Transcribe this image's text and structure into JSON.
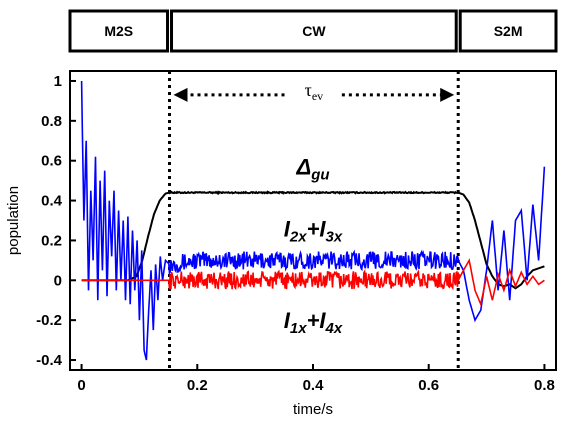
{
  "chart_data": {
    "type": "line",
    "xlabel": "time/s",
    "ylabel": "population",
    "xlim": [
      -0.02,
      0.82
    ],
    "ylim": [
      -0.45,
      1.05
    ],
    "x_ticks": [
      "0",
      "0.2",
      "0.4",
      "0.6",
      "0.8"
    ],
    "y_ticks": [
      "-0.4",
      "-0.2",
      "0",
      "0.2",
      "0.4",
      "0.6",
      "0.8",
      "1"
    ],
    "x_tick_values": [
      0,
      0.2,
      0.4,
      0.6,
      0.8
    ],
    "y_tick_values": [
      -0.4,
      -0.2,
      0,
      0.2,
      0.4,
      0.6,
      0.8,
      1
    ],
    "phases": [
      {
        "label": "M2S",
        "start": -0.02,
        "end": 0.152
      },
      {
        "label": "CW",
        "start": 0.152,
        "end": 0.651
      },
      {
        "label": "S2M",
        "start": 0.651,
        "end": 0.82
      }
    ],
    "boundaries": [
      0.152,
      0.651
    ],
    "tau_label": "τ",
    "tau_subscript": "ev",
    "annotations": {
      "delta_main": "Δ",
      "delta_sub": "gu",
      "upper_l1": "I",
      "upper_s1": "2x",
      "upper_plus": "+",
      "upper_l2": "I",
      "upper_s2": "3x",
      "lower_l1": "I",
      "lower_s1": "1x",
      "lower_plus": "+",
      "lower_l2": "I",
      "lower_s2": "4x"
    },
    "series": [
      {
        "color": "#000000",
        "points": [
          [
            0,
            0
          ],
          [
            0.08,
            0
          ],
          [
            0.095,
            0.02
          ],
          [
            0.105,
            0.1
          ],
          [
            0.115,
            0.22
          ],
          [
            0.125,
            0.33
          ],
          [
            0.135,
            0.4
          ],
          [
            0.145,
            0.435
          ],
          [
            0.152,
            0.44
          ],
          [
            0.4,
            0.44
          ],
          [
            0.651,
            0.44
          ],
          [
            0.66,
            0.43
          ],
          [
            0.67,
            0.39
          ],
          [
            0.68,
            0.3
          ],
          [
            0.69,
            0.19
          ],
          [
            0.7,
            0.08
          ],
          [
            0.71,
            0.02
          ],
          [
            0.72,
            -0.02
          ],
          [
            0.73,
            -0.03
          ],
          [
            0.74,
            -0.02
          ],
          [
            0.75,
            -0.04
          ],
          [
            0.76,
            -0.02
          ],
          [
            0.77,
            0.02
          ],
          [
            0.78,
            0.05
          ],
          [
            0.79,
            0.06
          ],
          [
            0.8,
            0.07
          ]
        ]
      },
      {
        "color": "#0000ff",
        "points": [
          [
            0,
            1.0
          ],
          [
            0.004,
            0.3
          ],
          [
            0.008,
            0.7
          ],
          [
            0.012,
            -0.05
          ],
          [
            0.016,
            0.45
          ],
          [
            0.02,
            0.1
          ],
          [
            0.024,
            0.62
          ],
          [
            0.028,
            -0.1
          ],
          [
            0.032,
            0.5
          ],
          [
            0.036,
            0.05
          ],
          [
            0.04,
            0.55
          ],
          [
            0.044,
            -0.08
          ],
          [
            0.048,
            0.4
          ],
          [
            0.052,
            0.12
          ],
          [
            0.056,
            0.45
          ],
          [
            0.06,
            -0.05
          ],
          [
            0.064,
            0.35
          ],
          [
            0.068,
            0.0
          ],
          [
            0.072,
            0.3
          ],
          [
            0.076,
            -0.1
          ],
          [
            0.08,
            0.32
          ],
          [
            0.084,
            -0.12
          ],
          [
            0.088,
            0.25
          ],
          [
            0.092,
            -0.05
          ],
          [
            0.096,
            0.2
          ],
          [
            0.1,
            -0.2
          ],
          [
            0.104,
            0.15
          ],
          [
            0.108,
            -0.35
          ],
          [
            0.112,
            -0.4
          ],
          [
            0.116,
            -0.15
          ],
          [
            0.12,
            0.05
          ],
          [
            0.124,
            -0.25
          ],
          [
            0.128,
            0.08
          ],
          [
            0.132,
            -0.1
          ],
          [
            0.136,
            0.12
          ],
          [
            0.14,
            0.0
          ],
          [
            0.145,
            0.1
          ],
          [
            0.152,
            0.08
          ],
          [
            0.2,
            0.1
          ],
          [
            0.3,
            0.1
          ],
          [
            0.4,
            0.1
          ],
          [
            0.5,
            0.1
          ],
          [
            0.6,
            0.1
          ],
          [
            0.651,
            0.1
          ],
          [
            0.66,
            0.05
          ],
          [
            0.67,
            -0.1
          ],
          [
            0.68,
            -0.2
          ],
          [
            0.69,
            -0.15
          ],
          [
            0.7,
            0.05
          ],
          [
            0.71,
            0.3
          ],
          [
            0.72,
            -0.05
          ],
          [
            0.73,
            0.25
          ],
          [
            0.74,
            -0.1
          ],
          [
            0.75,
            0.3
          ],
          [
            0.76,
            0.35
          ],
          [
            0.77,
            0.0
          ],
          [
            0.78,
            0.38
          ],
          [
            0.79,
            0.1
          ],
          [
            0.8,
            0.57
          ]
        ]
      },
      {
        "color": "#ff0000",
        "points": [
          [
            0,
            0
          ],
          [
            0.152,
            0
          ],
          [
            0.2,
            0.0
          ],
          [
            0.3,
            0.0
          ],
          [
            0.4,
            0.0
          ],
          [
            0.5,
            0.0
          ],
          [
            0.6,
            0.0
          ],
          [
            0.651,
            0.0
          ],
          [
            0.66,
            0.05
          ],
          [
            0.67,
            0.1
          ],
          [
            0.68,
            -0.05
          ],
          [
            0.69,
            -0.12
          ],
          [
            0.7,
            0.02
          ],
          [
            0.71,
            -0.1
          ],
          [
            0.72,
            0.03
          ],
          [
            0.73,
            -0.05
          ],
          [
            0.74,
            0.05
          ],
          [
            0.75,
            -0.03
          ],
          [
            0.76,
            0.04
          ],
          [
            0.77,
            -0.02
          ],
          [
            0.78,
            0.02
          ],
          [
            0.79,
            -0.02
          ],
          [
            0.8,
            0.0
          ]
        ]
      }
    ]
  }
}
